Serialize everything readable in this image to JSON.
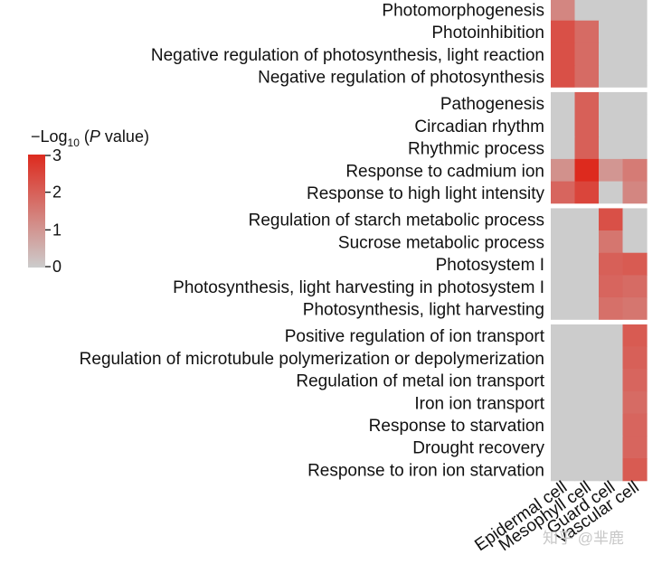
{
  "chart_data": {
    "type": "heatmap",
    "columns": [
      "Epidermal cell",
      "Mesophyll cell",
      "Guard cell",
      "Vascular cell"
    ],
    "groups": [
      {
        "rows": [
          "Photomorphogenesis",
          "Photoinhibition",
          "Negative regulation of photosynthesis, light reaction",
          "Negative regulation of photosynthesis"
        ],
        "values": [
          [
            1.3,
            0,
            0,
            0
          ],
          [
            2.3,
            1.8,
            0,
            0
          ],
          [
            2.3,
            1.8,
            0,
            0
          ],
          [
            2.3,
            1.8,
            0,
            0
          ]
        ]
      },
      {
        "rows": [
          "Pathogenesis",
          "Circadian rhythm",
          "Rhythmic process",
          "Response to cadmium ion",
          "Response to high light intensity"
        ],
        "values": [
          [
            0,
            2.0,
            0,
            0
          ],
          [
            0,
            2.0,
            0,
            0
          ],
          [
            0,
            2.0,
            0,
            0
          ],
          [
            1.1,
            3.0,
            1.0,
            1.5
          ],
          [
            1.9,
            2.5,
            0,
            1.3
          ]
        ]
      },
      {
        "rows": [
          "Regulation of starch metabolic process",
          "Sucrose metabolic process",
          "Photosystem I",
          "Photosynthesis, light harvesting in photosystem I",
          "Photosynthesis, light harvesting"
        ],
        "values": [
          [
            0,
            0,
            2.3,
            0
          ],
          [
            0,
            0,
            1.6,
            0
          ],
          [
            0,
            0,
            2.0,
            2.1
          ],
          [
            0,
            0,
            1.9,
            1.8
          ],
          [
            0,
            0,
            1.7,
            1.6
          ]
        ]
      },
      {
        "rows": [
          "Positive regulation of ion transport",
          "Regulation of microtubule polymerization or depolymerization",
          "Regulation of metal ion transport",
          "Iron ion transport",
          "Response to starvation",
          "Drought recovery",
          "Response to iron ion starvation"
        ],
        "values": [
          [
            0,
            0,
            0,
            2.1
          ],
          [
            0,
            0,
            0,
            2.0
          ],
          [
            0,
            0,
            0,
            1.9
          ],
          [
            0,
            0,
            0,
            1.8
          ],
          [
            0,
            0,
            0,
            1.9
          ],
          [
            0,
            0,
            0,
            1.9
          ],
          [
            0,
            0,
            0,
            2.1
          ]
        ]
      }
    ],
    "legend": {
      "title_prefix": "−Log",
      "title_subscript": "10",
      "title_open": " (",
      "title_italic": "P",
      "title_suffix": " value)",
      "ticks": [
        "3",
        "2",
        "1",
        "0"
      ],
      "tick_values": [
        3,
        2,
        1,
        0
      ],
      "range": [
        0,
        3
      ],
      "colors": {
        "low": "#cccccc",
        "high": "#dd2a1e"
      }
    }
  },
  "watermark": "知乎 @芈鹿"
}
